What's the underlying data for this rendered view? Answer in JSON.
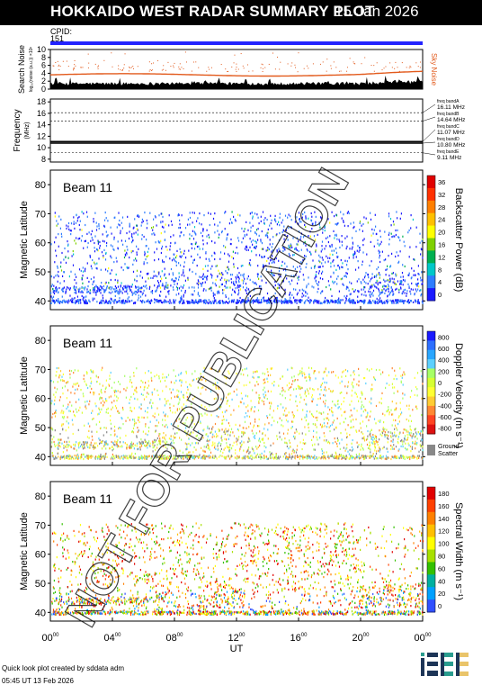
{
  "header": {
    "title": "HOKKAIDO WEST RADAR SUMMARY PLOT",
    "date": "15 Jan 2026"
  },
  "cpid": {
    "label": "CPID:",
    "value": "151"
  },
  "colors": {
    "header_bg": "#000000",
    "cpid_bar": "#2323ff",
    "sky_noise": "#e25a1c",
    "ground_scatter": "#888888"
  },
  "chart_data": [
    {
      "type": "area",
      "panel": "search-noise",
      "ylabel": "Search Noise",
      "ylabel_sub": "log₁₀(noise (a.u.)) ×10ⁿ",
      "right_label": "Sky Noise",
      "ylim": [
        0,
        10
      ],
      "yticks": [
        "0",
        "2",
        "4",
        "6",
        "8",
        "10"
      ],
      "xlim": [
        0,
        24
      ],
      "sky_noise_level": 3.6
    },
    {
      "type": "line",
      "panel": "frequency",
      "ylabel": "Frequency",
      "yunit": "(MHz)",
      "ylim": [
        7.5,
        18.5
      ],
      "yticks": [
        "8",
        "10",
        "12",
        "14",
        "16",
        "18"
      ],
      "bands": [
        {
          "name": "freq bandA",
          "value": "16.11 MHz",
          "y": 16.11
        },
        {
          "name": "freq bandB",
          "value": "14.64 MHz",
          "y": 14.64
        },
        {
          "name": "freq bandC",
          "value": "11.07 MHz",
          "y": 11.07
        },
        {
          "name": "freq bandD",
          "value": "10.80 MHz",
          "y": 10.8
        },
        {
          "name": "freq bandE",
          "value": "9.11 MHz",
          "y": 9.11
        }
      ]
    },
    {
      "type": "heatmap",
      "panel": "power",
      "beam": "Beam 11",
      "ylabel": "Magnetic Latitude",
      "ylim": [
        37,
        85
      ],
      "yticks": [
        "40",
        "50",
        "60",
        "70",
        "80"
      ],
      "colorbar_label": "Backscatter Power (dB)",
      "colorbar_ticks": [
        "0",
        "4",
        "8",
        "12",
        "16",
        "20",
        "24",
        "28",
        "32",
        "36"
      ]
    },
    {
      "type": "heatmap",
      "panel": "velocity",
      "beam": "Beam 11",
      "ylabel": "Magnetic Latitude",
      "ylim": [
        37,
        85
      ],
      "yticks": [
        "40",
        "50",
        "60",
        "70",
        "80"
      ],
      "colorbar_label": "Doppler Velocity (m s⁻¹)",
      "colorbar_ticks": [
        "800",
        "600",
        "400",
        "200",
        "0",
        "-200",
        "-400",
        "-600",
        "-800"
      ],
      "ground_scatter_label": [
        "Ground",
        "Scatter"
      ]
    },
    {
      "type": "heatmap",
      "panel": "width",
      "beam": "Beam 11",
      "ylabel": "Magnetic Latitude",
      "ylim": [
        37,
        85
      ],
      "yticks": [
        "40",
        "50",
        "60",
        "70",
        "80"
      ],
      "colorbar_label": "Spectral Width (m s⁻¹)",
      "colorbar_ticks": [
        "0",
        "20",
        "40",
        "60",
        "80",
        "100",
        "120",
        "140",
        "160",
        "180"
      ]
    }
  ],
  "xaxis": {
    "label": "UT",
    "ticks": [
      {
        "h": "00",
        "m": "00"
      },
      {
        "h": "04",
        "m": "00"
      },
      {
        "h": "08",
        "m": "00"
      },
      {
        "h": "12",
        "m": "00"
      },
      {
        "h": "16",
        "m": "00"
      },
      {
        "h": "20",
        "m": "00"
      },
      {
        "h": "00",
        "m": "00"
      }
    ]
  },
  "watermark": "NOT FOR PUBLICATION",
  "footer": {
    "credit": "Quick look plot created by sddata adm",
    "timestamp": "05:45 UT 13 Feb 2026",
    "logo": "ISEE"
  }
}
